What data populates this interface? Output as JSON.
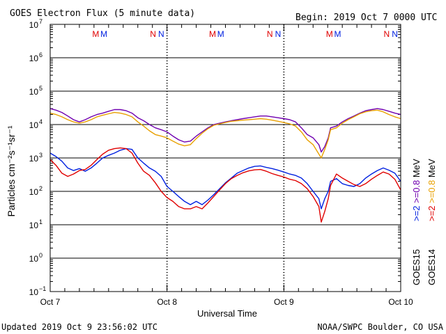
{
  "chart_data": {
    "type": "line",
    "title": "GOES Electron Flux (5 minute data)",
    "begin_label": "Begin: 2019 Oct 7 0000 UTC",
    "xlabel": "Universal Time",
    "ylabel": "Particles cm⁻²s⁻¹sr⁻¹",
    "y_scale": "log",
    "ylim": [
      0.1,
      10000000
    ],
    "y_ticks": [
      {
        "base": "10",
        "exp": "7"
      },
      {
        "base": "10",
        "exp": "6"
      },
      {
        "base": "10",
        "exp": "5"
      },
      {
        "base": "10",
        "exp": "4"
      },
      {
        "base": "10",
        "exp": "3"
      },
      {
        "base": "10",
        "exp": "2"
      },
      {
        "base": "10",
        "exp": "1"
      },
      {
        "base": "10",
        "exp": "0"
      },
      {
        "base": "10",
        "exp": "−1"
      }
    ],
    "x_unit": "days since 2019 Oct 7 0000 UTC",
    "xlim": [
      0,
      3
    ],
    "x_ticks": [
      {
        "x": 0,
        "label": "Oct 7"
      },
      {
        "x": 1,
        "label": "Oct 8"
      },
      {
        "x": 2,
        "label": "Oct 9"
      },
      {
        "x": 3,
        "label": "Oct 10"
      }
    ],
    "threshold_line": 1000,
    "markers": [
      {
        "x": 0.39,
        "text": "M",
        "color": "#e00000"
      },
      {
        "x": 0.46,
        "text": "M",
        "color": "#0020e0"
      },
      {
        "x": 0.88,
        "text": "N",
        "color": "#e00000"
      },
      {
        "x": 0.95,
        "text": "N",
        "color": "#0020e0"
      },
      {
        "x": 1.39,
        "text": "M",
        "color": "#e00000"
      },
      {
        "x": 1.46,
        "text": "M",
        "color": "#0020e0"
      },
      {
        "x": 1.88,
        "text": "N",
        "color": "#e00000"
      },
      {
        "x": 1.95,
        "text": "N",
        "color": "#0020e0"
      },
      {
        "x": 2.39,
        "text": "M",
        "color": "#e00000"
      },
      {
        "x": 2.46,
        "text": "M",
        "color": "#0020e0"
      },
      {
        "x": 2.88,
        "text": "N",
        "color": "#e00000"
      },
      {
        "x": 2.95,
        "text": "N",
        "color": "#0020e0"
      }
    ],
    "legend": {
      "position": "right",
      "columns": [
        {
          "text": "GOES15",
          "items": [
            {
              "text": ">=2",
              "color": "#0020e0"
            },
            {
              "text": ">=0.8",
              "color": "#7000b0"
            },
            {
              "text": "MeV",
              "color": "#000000"
            }
          ]
        },
        {
          "text": "GOES14",
          "items": [
            {
              "text": ">=2",
              "color": "#e00000"
            },
            {
              "text": ">=0.8",
              "color": "#e8a000"
            },
            {
              "text": "MeV",
              "color": "#000000"
            }
          ]
        }
      ]
    },
    "series": [
      {
        "name": "GOES15 >=0.8 MeV",
        "color": "#7000b0",
        "x": [
          0,
          0.05,
          0.1,
          0.15,
          0.2,
          0.25,
          0.3,
          0.35,
          0.4,
          0.45,
          0.5,
          0.55,
          0.6,
          0.65,
          0.7,
          0.75,
          0.8,
          0.85,
          0.9,
          0.95,
          1.0,
          1.05,
          1.1,
          1.15,
          1.2,
          1.25,
          1.3,
          1.35,
          1.4,
          1.45,
          1.5,
          1.55,
          1.6,
          1.65,
          1.7,
          1.75,
          1.8,
          1.85,
          1.9,
          1.95,
          2.0,
          2.05,
          2.1,
          2.15,
          2.2,
          2.25,
          2.3,
          2.32,
          2.35,
          2.38,
          2.4,
          2.45,
          2.5,
          2.55,
          2.6,
          2.65,
          2.7,
          2.75,
          2.8,
          2.85,
          2.9,
          2.95,
          3.0
        ],
        "y": [
          30000,
          27000,
          23000,
          18000,
          14000,
          12000,
          14000,
          17000,
          20000,
          22000,
          25000,
          28000,
          28000,
          26000,
          22000,
          16000,
          13000,
          10000,
          8000,
          7000,
          6000,
          4500,
          3500,
          3000,
          3200,
          4500,
          6000,
          8000,
          10000,
          11000,
          12000,
          13000,
          14000,
          15000,
          16000,
          17000,
          18000,
          18000,
          17000,
          16000,
          15000,
          14000,
          12000,
          8000,
          5000,
          4000,
          2500,
          1500,
          2200,
          4000,
          8000,
          9000,
          12000,
          15000,
          18000,
          22000,
          26000,
          28000,
          30000,
          28000,
          25000,
          22000,
          20000
        ]
      },
      {
        "name": "GOES14 >=0.8 MeV",
        "color": "#e8a000",
        "x": [
          0,
          0.05,
          0.1,
          0.15,
          0.2,
          0.25,
          0.3,
          0.35,
          0.4,
          0.45,
          0.5,
          0.55,
          0.6,
          0.65,
          0.7,
          0.75,
          0.8,
          0.85,
          0.9,
          0.95,
          1.0,
          1.05,
          1.1,
          1.15,
          1.2,
          1.25,
          1.3,
          1.35,
          1.4,
          1.45,
          1.5,
          1.55,
          1.6,
          1.65,
          1.7,
          1.75,
          1.8,
          1.85,
          1.9,
          1.95,
          2.0,
          2.05,
          2.1,
          2.15,
          2.2,
          2.25,
          2.3,
          2.32,
          2.35,
          2.38,
          2.4,
          2.45,
          2.5,
          2.55,
          2.6,
          2.65,
          2.7,
          2.75,
          2.8,
          2.85,
          2.9,
          2.95,
          3.0
        ],
        "y": [
          22000,
          20000,
          17000,
          14000,
          12000,
          11000,
          12000,
          14000,
          17000,
          19000,
          21000,
          23000,
          22000,
          20000,
          17000,
          12000,
          9000,
          6500,
          5000,
          4500,
          4000,
          3200,
          2600,
          2300,
          2500,
          3800,
          5500,
          7500,
          9500,
          10500,
          11500,
          12500,
          13000,
          13500,
          14000,
          14500,
          15000,
          14500,
          13500,
          12500,
          11500,
          10500,
          9000,
          6000,
          3500,
          2500,
          1300,
          1000,
          1800,
          3500,
          7000,
          8000,
          11000,
          14000,
          17000,
          21000,
          24000,
          26000,
          27000,
          24000,
          20000,
          17000,
          15000
        ]
      },
      {
        "name": "GOES15 >=2 MeV",
        "color": "#0020e0",
        "x": [
          0,
          0.05,
          0.1,
          0.15,
          0.2,
          0.25,
          0.3,
          0.35,
          0.4,
          0.45,
          0.5,
          0.55,
          0.6,
          0.65,
          0.7,
          0.75,
          0.8,
          0.85,
          0.9,
          0.95,
          1.0,
          1.05,
          1.1,
          1.15,
          1.2,
          1.25,
          1.3,
          1.35,
          1.4,
          1.45,
          1.5,
          1.55,
          1.6,
          1.65,
          1.7,
          1.75,
          1.8,
          1.85,
          1.9,
          1.95,
          2.0,
          2.05,
          2.1,
          2.15,
          2.2,
          2.25,
          2.3,
          2.32,
          2.35,
          2.38,
          2.4,
          2.45,
          2.5,
          2.55,
          2.6,
          2.65,
          2.7,
          2.75,
          2.8,
          2.85,
          2.9,
          2.95,
          3.0
        ],
        "y": [
          1400,
          1100,
          800,
          500,
          420,
          480,
          400,
          500,
          700,
          1000,
          1200,
          1400,
          1700,
          1900,
          1800,
          1000,
          700,
          500,
          400,
          280,
          140,
          100,
          70,
          50,
          40,
          50,
          40,
          55,
          80,
          120,
          180,
          250,
          350,
          420,
          500,
          560,
          580,
          520,
          480,
          430,
          380,
          330,
          300,
          250,
          170,
          100,
          60,
          30,
          60,
          100,
          200,
          240,
          170,
          150,
          140,
          170,
          250,
          330,
          420,
          500,
          430,
          350,
          200
        ]
      },
      {
        "name": "GOES14 >=2 MeV",
        "color": "#e00000",
        "x": [
          0,
          0.05,
          0.1,
          0.15,
          0.2,
          0.25,
          0.3,
          0.35,
          0.4,
          0.45,
          0.5,
          0.55,
          0.6,
          0.65,
          0.7,
          0.75,
          0.8,
          0.85,
          0.9,
          0.95,
          1.0,
          1.05,
          1.1,
          1.15,
          1.2,
          1.25,
          1.3,
          1.35,
          1.4,
          1.45,
          1.5,
          1.55,
          1.6,
          1.65,
          1.7,
          1.75,
          1.8,
          1.85,
          1.9,
          1.95,
          2.0,
          2.05,
          2.1,
          2.15,
          2.2,
          2.25,
          2.3,
          2.32,
          2.35,
          2.38,
          2.4,
          2.45,
          2.5,
          2.55,
          2.6,
          2.65,
          2.7,
          2.75,
          2.8,
          2.85,
          2.9,
          2.95,
          3.0
        ],
        "y": [
          900,
          600,
          350,
          280,
          330,
          420,
          450,
          600,
          900,
          1300,
          1700,
          1900,
          2000,
          1900,
          1400,
          700,
          400,
          300,
          180,
          100,
          65,
          50,
          35,
          30,
          30,
          35,
          30,
          45,
          70,
          110,
          170,
          240,
          300,
          360,
          410,
          440,
          450,
          400,
          340,
          300,
          270,
          230,
          210,
          170,
          120,
          70,
          35,
          12,
          25,
          60,
          150,
          330,
          250,
          200,
          160,
          140,
          170,
          230,
          300,
          380,
          330,
          230,
          110
        ]
      }
    ]
  },
  "footer": {
    "updated": "Updated 2019 Oct  9 23:56:02 UTC",
    "source": "NOAA/SWPC Boulder, CO USA"
  }
}
